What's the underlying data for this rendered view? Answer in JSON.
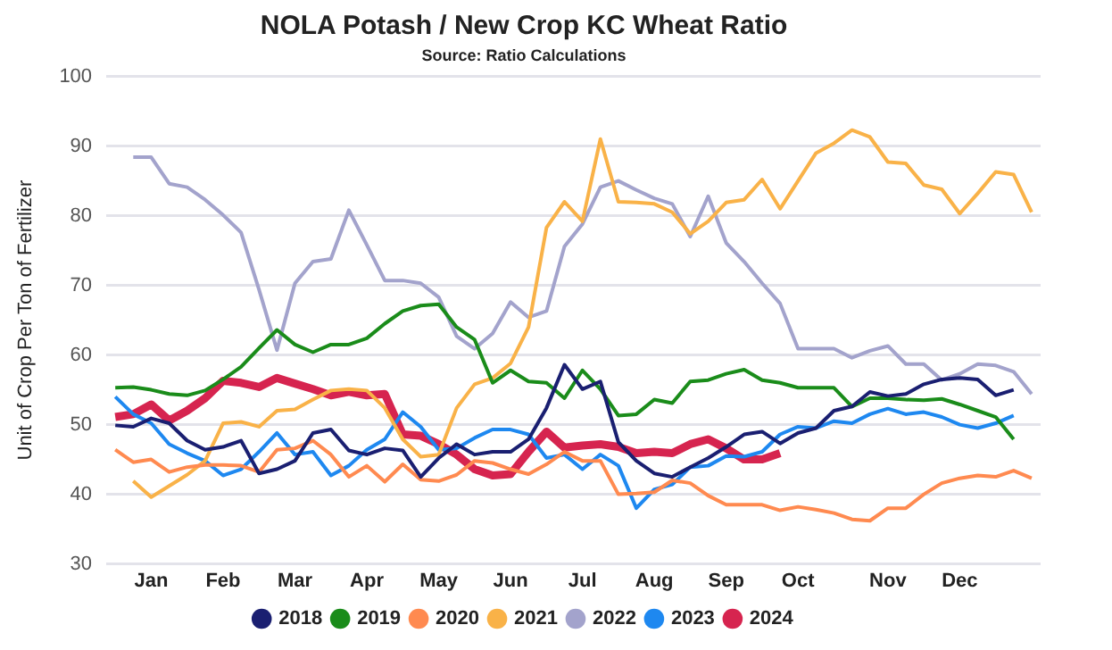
{
  "chart_data": {
    "type": "line",
    "title": "NOLA Potash / New Crop KC Wheat Ratio",
    "subtitle": "Source: Ratio Calculations",
    "ylabel": "Unit of Crop Per Ton of Fertilizer",
    "categories": [
      null,
      null,
      "Jan",
      null,
      null,
      null,
      "Feb",
      null,
      null,
      null,
      "Mar",
      null,
      null,
      null,
      "Apr",
      null,
      null,
      null,
      "May",
      null,
      null,
      null,
      "Jun",
      null,
      null,
      null,
      "Jul",
      null,
      null,
      null,
      "Aug",
      null,
      null,
      null,
      "Sep",
      null,
      null,
      null,
      "Oct",
      null,
      null,
      null,
      null,
      "Nov",
      null,
      null,
      null,
      "Dec",
      null,
      null,
      null,
      null
    ],
    "ylim": [
      30,
      100
    ],
    "yticks": [
      30,
      40,
      50,
      60,
      70,
      80,
      90,
      100
    ],
    "grid": "y",
    "legend": "bottom",
    "marker": "none",
    "line_style": "solid",
    "series": [
      {
        "name": "2018",
        "color": "#1a1f71",
        "values": [
          49.9,
          49.7,
          50.9,
          50.2,
          47.7,
          46.4,
          46.8,
          47.7,
          43,
          43.6,
          44.8,
          48.8,
          49.3,
          46.3,
          45.7,
          46.6,
          46.3,
          42.5,
          45.2,
          47.2,
          45.7,
          46.1,
          46.1,
          47.9,
          52.4,
          58.6,
          55.1,
          56.2,
          47.5,
          44.8,
          43,
          42.5,
          43.9,
          45.2,
          46.8,
          48.6,
          49,
          47.3,
          48.8,
          49.5,
          52,
          52.6,
          54.7,
          54.1,
          54.4,
          55.8,
          56.5,
          56.7,
          56.5,
          54.2,
          55,
          null
        ]
      },
      {
        "name": "2019",
        "color": "#1a8c1a",
        "values": [
          55.3,
          55.4,
          55,
          54.4,
          54.2,
          54.9,
          56.5,
          58.3,
          61,
          63.6,
          61.5,
          60.4,
          61.5,
          61.5,
          62.4,
          64.5,
          66.3,
          67.1,
          67.3,
          64,
          62.2,
          56,
          57.8,
          56.2,
          56,
          53.8,
          57.8,
          55.1,
          51.3,
          51.5,
          53.6,
          53.1,
          56.2,
          56.4,
          57.3,
          57.9,
          56.4,
          56,
          55.3,
          55.3,
          55.3,
          52.6,
          53.8,
          53.8,
          53.6,
          53.5,
          53.7,
          52.9,
          52,
          51.1,
          47.9,
          null
        ]
      },
      {
        "name": "2020",
        "color": "#ff8a50",
        "values": [
          46.4,
          44.6,
          45,
          43.2,
          43.9,
          44.2,
          44.2,
          44.1,
          43.2,
          46.4,
          46.6,
          47.7,
          45.7,
          42.5,
          44.1,
          41.8,
          44.3,
          42.1,
          41.9,
          42.8,
          44.8,
          44.5,
          43.6,
          42.9,
          44.3,
          46.1,
          44.8,
          44.8,
          40,
          40.1,
          40.3,
          42,
          41.6,
          39.8,
          38.5,
          38.5,
          38.5,
          37.7,
          38.2,
          37.8,
          37.3,
          36.4,
          36.2,
          38,
          38,
          40,
          41.6,
          42.3,
          42.7,
          42.5,
          43.4,
          42.3
        ]
      },
      {
        "name": "2021",
        "color": "#f9b248",
        "values": [
          null,
          41.9,
          39.6,
          41.2,
          42.8,
          44.8,
          50.2,
          50.4,
          49.7,
          52,
          52.2,
          53.6,
          54.9,
          55.1,
          54.9,
          52.4,
          47.9,
          45.4,
          45.7,
          52.4,
          55.8,
          56.7,
          58.8,
          64,
          78.3,
          82,
          79.2,
          91,
          82,
          81.9,
          81.7,
          80.5,
          77.4,
          79.2,
          81.9,
          82.3,
          85.2,
          81,
          85,
          89,
          90.4,
          92.3,
          91.3,
          87.7,
          87.5,
          84.4,
          83.8,
          80.3,
          83.2,
          86.3,
          85.9,
          80.5
        ]
      },
      {
        "name": "2022",
        "color": "#a3a3cc",
        "values": [
          null,
          88.4,
          88.4,
          84.6,
          84.1,
          82.3,
          80.1,
          77.6,
          69.4,
          60.7,
          70.3,
          73.4,
          73.8,
          80.8,
          75.8,
          70.7,
          70.7,
          70.3,
          68.3,
          62.7,
          60.9,
          63.1,
          67.6,
          65.4,
          66.3,
          75.6,
          78.8,
          84.1,
          85,
          83.7,
          82.5,
          81.7,
          77,
          82.8,
          76.1,
          73.4,
          70.3,
          67.4,
          60.9,
          60.9,
          60.9,
          59.6,
          60.6,
          61.3,
          58.7,
          58.7,
          56.4,
          57.3,
          58.7,
          58.5,
          57.6,
          54.4
        ]
      },
      {
        "name": "2023",
        "color": "#1e88f0",
        "values": [
          54,
          51.5,
          50.2,
          47.2,
          45.9,
          44.8,
          42.7,
          43.6,
          46.1,
          48.8,
          45.7,
          46.1,
          42.7,
          44.1,
          46.4,
          47.9,
          51.8,
          49.7,
          46.4,
          46.6,
          48.1,
          49.3,
          49.3,
          48.6,
          45.2,
          45.7,
          43.6,
          45.7,
          44.1,
          38,
          40.7,
          41.4,
          43.9,
          44.1,
          45.5,
          45.4,
          46.1,
          48.6,
          49.7,
          49.5,
          50.5,
          50.2,
          51.5,
          52.3,
          51.5,
          51.8,
          51.1,
          50,
          49.5,
          50.2,
          51.3,
          null
        ]
      },
      {
        "name": "2024",
        "color": "#d6244f",
        "values": [
          51.1,
          51.5,
          52.9,
          50.6,
          52,
          53.8,
          56.3,
          56,
          55.4,
          56.7,
          55.9,
          55.1,
          54.2,
          54.7,
          54.2,
          54.4,
          48.6,
          48.4,
          47.2,
          45.7,
          43.6,
          42.7,
          42.9,
          46.1,
          49,
          46.7,
          47,
          47.2,
          46.8,
          45.9,
          46.1,
          45.9,
          47.2,
          47.9,
          46.6,
          45,
          45,
          45.9,
          null,
          null,
          null,
          null,
          null,
          null,
          null,
          null,
          null,
          null,
          null,
          null,
          null,
          null
        ]
      }
    ]
  }
}
